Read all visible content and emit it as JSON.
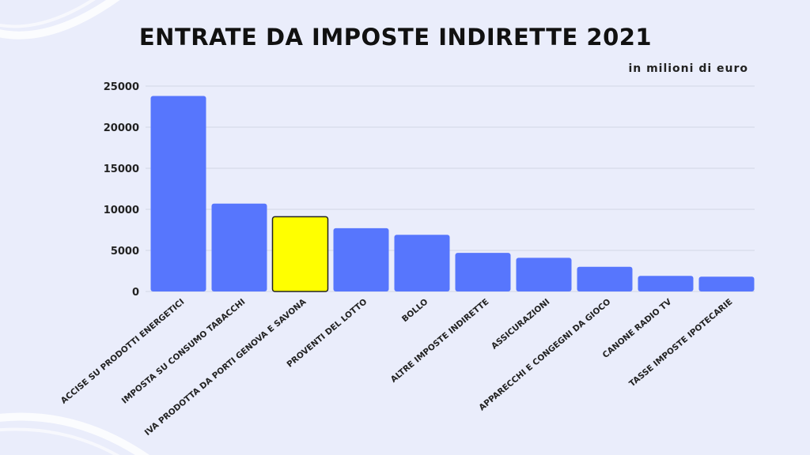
{
  "title": "ENTRATE DA IMPOSTE INDIRETTE 2021",
  "unit_label": "in milioni di euro",
  "colors": {
    "bar": "#5776fd",
    "highlight": "#ffff00",
    "grid": "#d3d6e6",
    "background": "#eaedfb"
  },
  "chart_data": {
    "type": "bar",
    "title": "ENTRATE DA IMPOSTE INDIRETTE 2021",
    "xlabel": "",
    "ylabel": "",
    "ylim": [
      0,
      25000
    ],
    "yticks": [
      0,
      5000,
      10000,
      15000,
      20000,
      25000
    ],
    "grid": true,
    "categories": [
      "ACCISE SU PRODOTTI ENERGETICI",
      "IMPOSTA SU CONSUMO TABACCHI",
      "IVA PRODOTTA DA PORTI GENOVA E SAVONA",
      "PROVENTI DEL LOTTO",
      "BOLLO",
      "ALTRE IMPOSTE INDIRETTE",
      "ASSICURAZIONI",
      "APPARECCHI E CONGEGNI DA GIOCO",
      "CANONE RADIO TV",
      "TASSE IMPOSTE IPOTECARIE"
    ],
    "values": [
      23800,
      10700,
      9100,
      7700,
      6900,
      4700,
      4100,
      3000,
      1900,
      1800
    ],
    "highlight_index": 2
  }
}
